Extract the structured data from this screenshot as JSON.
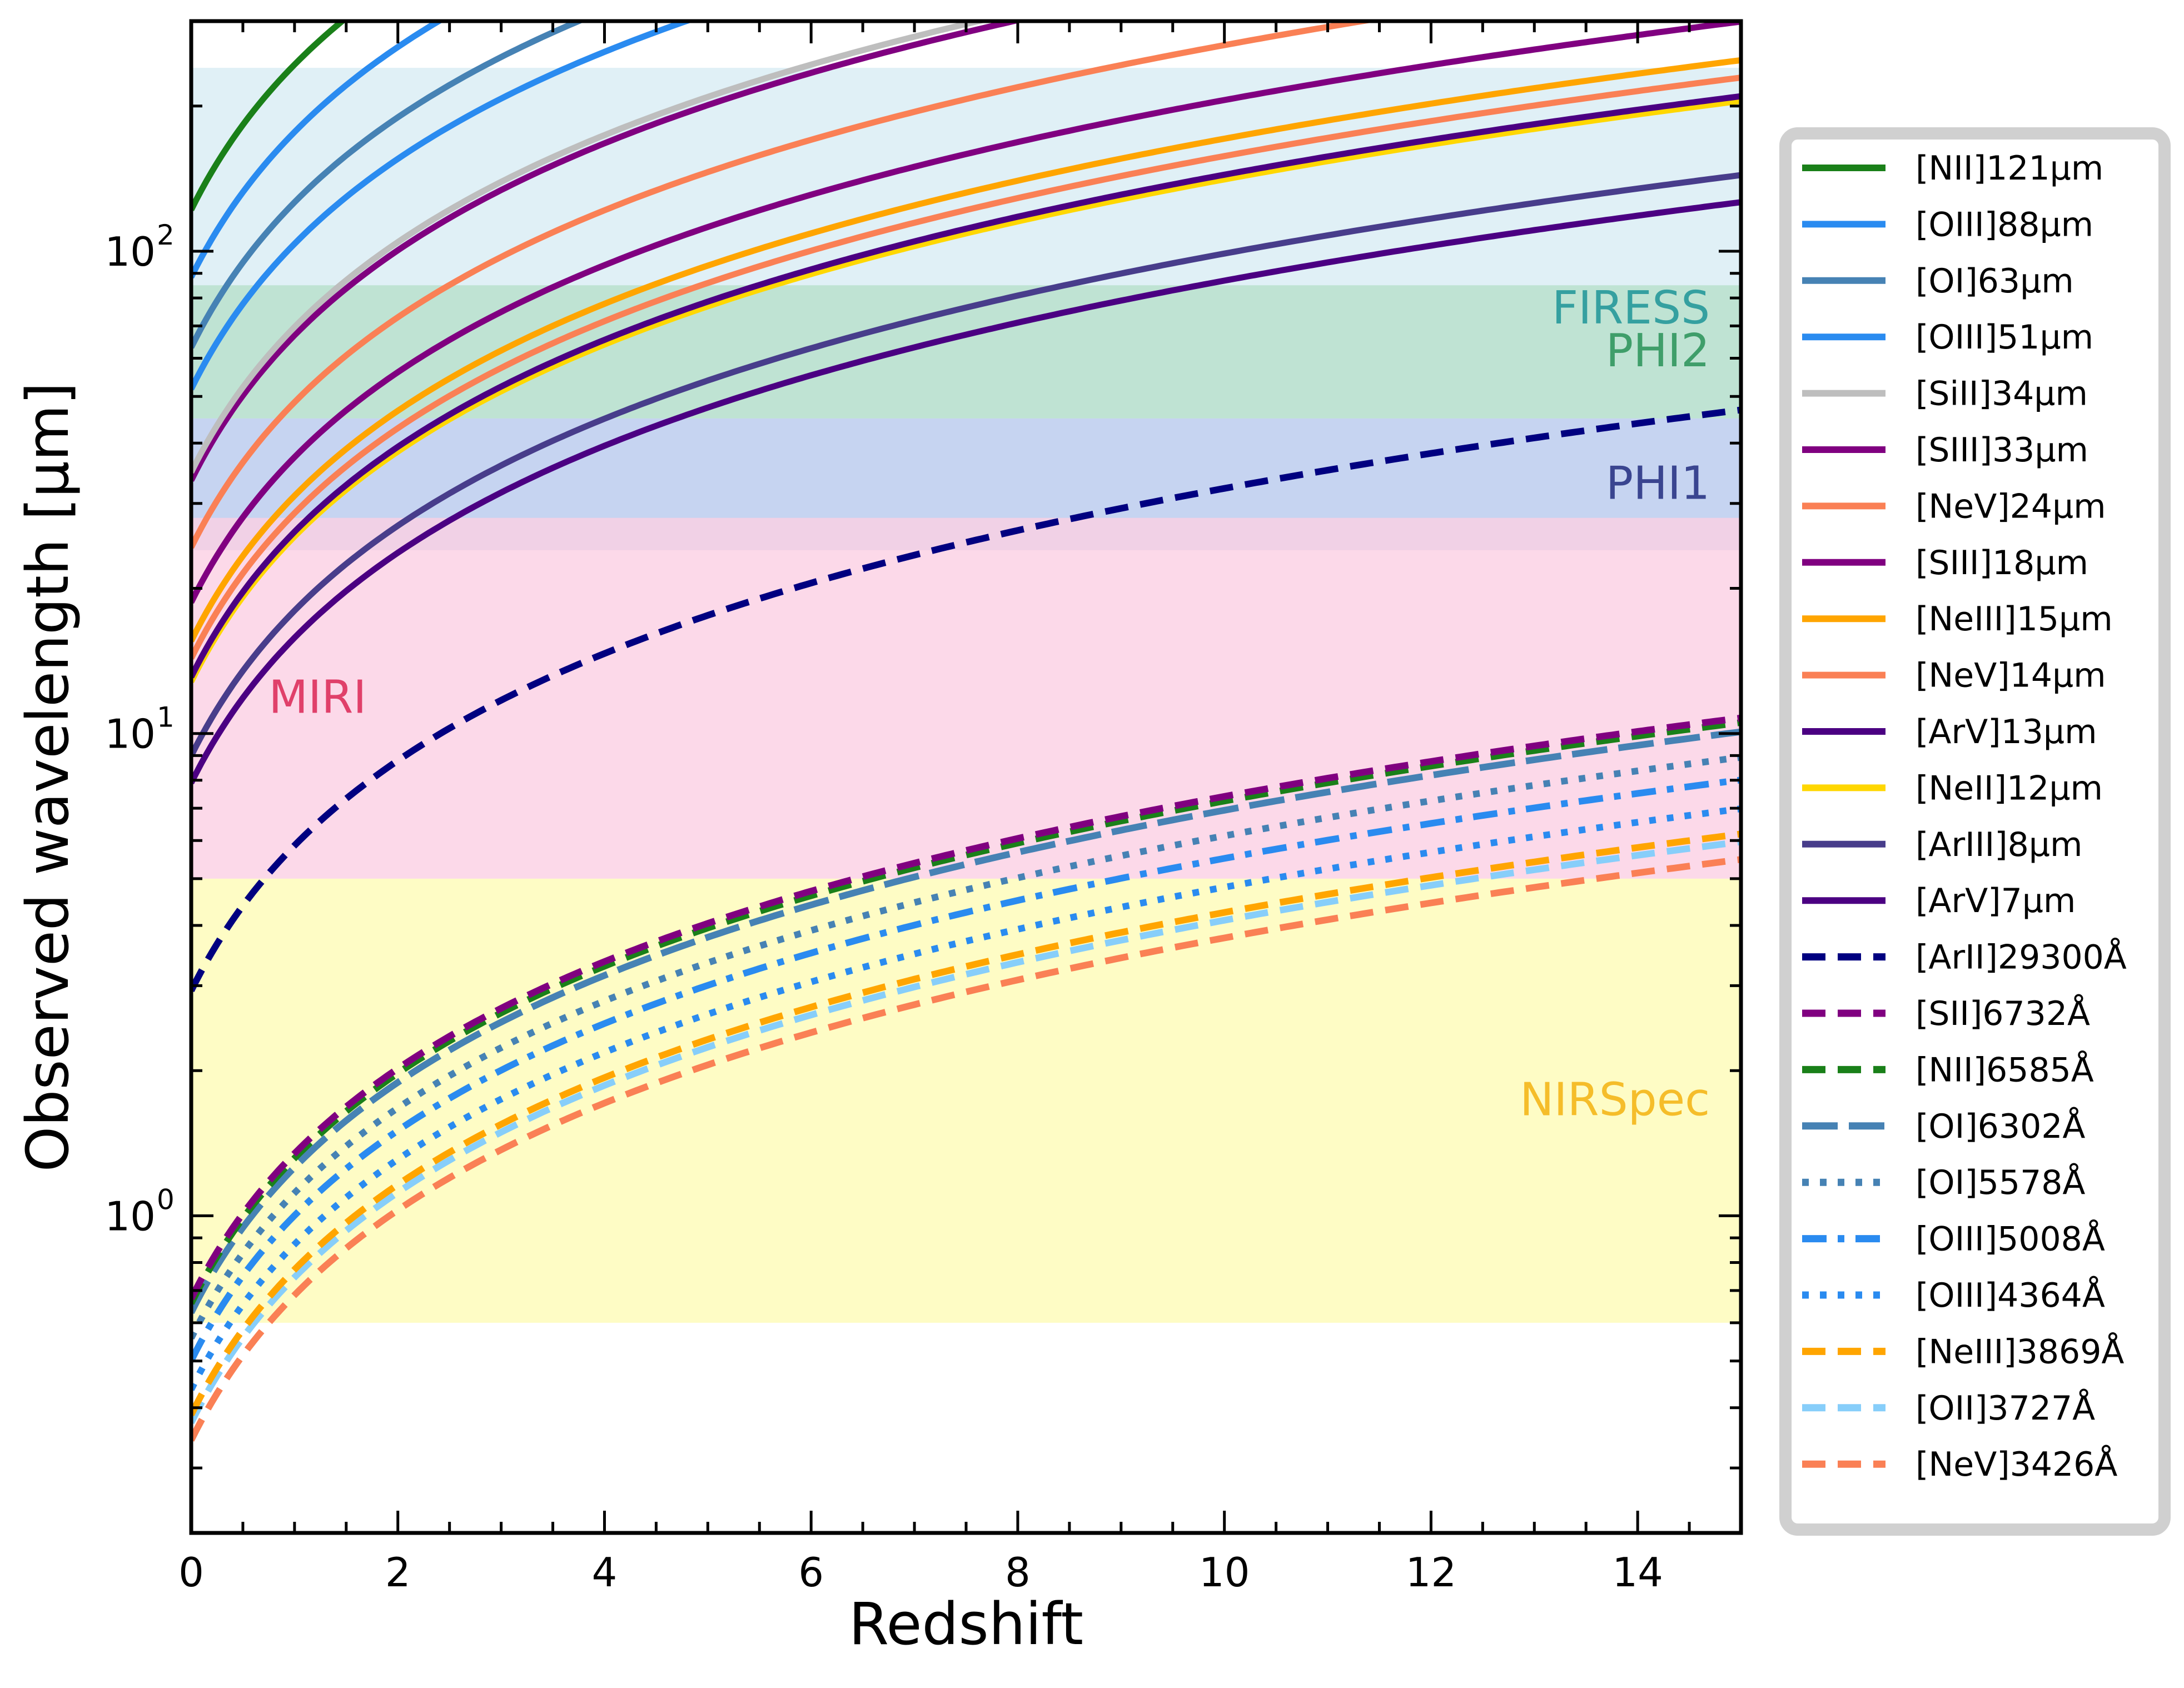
{
  "chart_data": {
    "type": "line",
    "xlabel": "Redshift",
    "ylabel": "Observed wavelength [μm]",
    "xlim": [
      0,
      15
    ],
    "ylim": [
      0.22,
      300
    ],
    "yscale": "log",
    "grid": false,
    "legend_position": "outside-right",
    "x_ticks": [
      0,
      2,
      4,
      6,
      8,
      10,
      12,
      14
    ],
    "x_tick_labels": [
      "0",
      "2",
      "4",
      "6",
      "8",
      "10",
      "12",
      "14"
    ],
    "y_ticks": [
      {
        "value": 1,
        "base": "10",
        "exp": "0"
      },
      {
        "value": 10,
        "base": "10",
        "exp": "1"
      },
      {
        "value": 100,
        "base": "10",
        "exp": "2"
      }
    ],
    "bands": [
      {
        "label": "FIRESS",
        "ymin": 24,
        "ymax": 240,
        "color": "#e0f0f6",
        "label_color": "#35a0a0",
        "label_z": 14.7
      },
      {
        "label": "PHI2",
        "ymin": 45,
        "ymax": 85,
        "color": "#bfe3d3",
        "label_color": "#3f9e6a",
        "label_z": 14.7
      },
      {
        "label": "PHI1",
        "ymin": 24,
        "ymax": 45,
        "color": "#c6d4f1",
        "label_color": "#3a4590",
        "label_z": 14.7
      },
      {
        "label": "MIRI",
        "ymin": 5,
        "ymax": 28,
        "color": "#fbd0e3",
        "label_color": "#e0406a",
        "label_z": 0.75
      },
      {
        "label": "NIRSpec",
        "ymin": 0.6,
        "ymax": 5,
        "color": "#fefcc5",
        "label_color": "#f5bd2a",
        "label_z": 14.7
      }
    ],
    "series": [
      {
        "name": "[NII]121μm",
        "rest": 121.9,
        "color": "#1a8019",
        "dash": "solid"
      },
      {
        "name": "[OIII]88μm",
        "rest": 88.36,
        "color": "#2a8bf0",
        "dash": "solid"
      },
      {
        "name": "[OI]63μm",
        "rest": 63.18,
        "color": "#4682b4",
        "dash": "solid"
      },
      {
        "name": "[OIII]51μm",
        "rest": 51.81,
        "color": "#2a8bf0",
        "dash": "solid"
      },
      {
        "name": "[SiII]34μm",
        "rest": 34.82,
        "color": "#bebebe",
        "dash": "solid"
      },
      {
        "name": "[SIII]33μm",
        "rest": 33.48,
        "color": "#800080",
        "dash": "solid"
      },
      {
        "name": "[NeV]24μm",
        "rest": 24.32,
        "color": "#fa8055",
        "dash": "solid"
      },
      {
        "name": "[SIII]18μm",
        "rest": 18.71,
        "color": "#800080",
        "dash": "solid"
      },
      {
        "name": "[NeIII]15μm",
        "rest": 15.56,
        "color": "#ffa500",
        "dash": "solid"
      },
      {
        "name": "[NeV]14μm",
        "rest": 14.32,
        "color": "#fa8055",
        "dash": "solid"
      },
      {
        "name": "[ArV]13μm",
        "rest": 13.1,
        "color": "#4b0082",
        "dash": "solid"
      },
      {
        "name": "[NeII]12μm",
        "rest": 12.81,
        "color": "#ffd700",
        "dash": "solid"
      },
      {
        "name": "[ArIII]8μm",
        "rest": 8.99,
        "color": "#483d8b",
        "dash": "solid"
      },
      {
        "name": "[ArV]7μm",
        "rest": 7.9,
        "color": "#4b0082",
        "dash": "solid"
      },
      {
        "name": "[ArII]29300Å",
        "rest": 2.93,
        "color": "#000080",
        "dash": "dashed"
      },
      {
        "name": "[SII]6732Å",
        "rest": 0.6732,
        "color": "#800080",
        "dash": "dashed"
      },
      {
        "name": "[NII]6585Å",
        "rest": 0.6585,
        "color": "#1a8019",
        "dash": "dashed"
      },
      {
        "name": "[OI]6302Å",
        "rest": 0.6302,
        "color": "#4682b4",
        "dash": "longdash"
      },
      {
        "name": "[OI]5578Å",
        "rest": 0.5578,
        "color": "#4682b4",
        "dash": "dotted"
      },
      {
        "name": "[OIII]5008Å",
        "rest": 0.5008,
        "color": "#2a8bf0",
        "dash": "dashdot"
      },
      {
        "name": "[OIII]4364Å",
        "rest": 0.4364,
        "color": "#2a8bf0",
        "dash": "dotted"
      },
      {
        "name": "[NeIII]3869Å",
        "rest": 0.3869,
        "color": "#ffa500",
        "dash": "dashed"
      },
      {
        "name": "[OII]3727Å",
        "rest": 0.3727,
        "color": "#87cefa",
        "dash": "dashed"
      },
      {
        "name": "[NeV]3426Å",
        "rest": 0.3426,
        "color": "#fa8055",
        "dash": "dashed"
      }
    ]
  }
}
